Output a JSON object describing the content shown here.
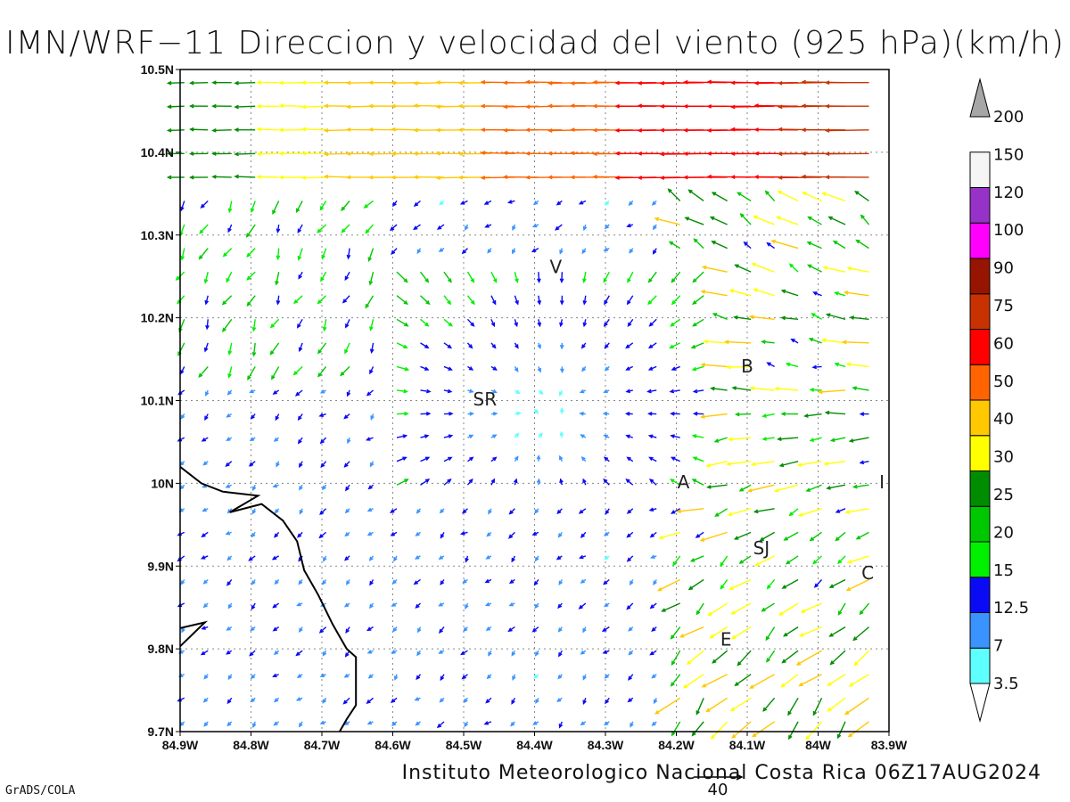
{
  "title": "IMN/WRF−11 Direccion y velocidad del viento (925 hPa)(km/h)",
  "footer": "Instituto Meteorologico Nacional Costa Rica 06Z17AUG2024",
  "software_credit": "GrADS/COLA",
  "map": {
    "lon_range": [
      -84.9,
      -83.9
    ],
    "lat_range": [
      9.7,
      10.5
    ],
    "grid": "dotted",
    "lon_ticks": [
      {
        "value": -84.9,
        "label": "84.9W"
      },
      {
        "value": -84.8,
        "label": "84.8W"
      },
      {
        "value": -84.7,
        "label": "84.7W"
      },
      {
        "value": -84.6,
        "label": "84.6W"
      },
      {
        "value": -84.5,
        "label": "84.5W"
      },
      {
        "value": -84.4,
        "label": "84.4W"
      },
      {
        "value": -84.3,
        "label": "84.3W"
      },
      {
        "value": -84.2,
        "label": "84.2W"
      },
      {
        "value": -84.1,
        "label": "84.1W"
      },
      {
        "value": -84.0,
        "label": "84W"
      },
      {
        "value": -83.9,
        "label": "83.9W"
      }
    ],
    "lat_ticks": [
      {
        "value": 9.7,
        "label": "9.7N"
      },
      {
        "value": 9.8,
        "label": "9.8N"
      },
      {
        "value": 9.9,
        "label": "9.9N"
      },
      {
        "value": 10.0,
        "label": "10N"
      },
      {
        "value": 10.1,
        "label": "10.1N"
      },
      {
        "value": 10.2,
        "label": "10.2N"
      },
      {
        "value": 10.3,
        "label": "10.3N"
      },
      {
        "value": 10.4,
        "label": "10.4N"
      },
      {
        "value": 10.5,
        "label": "10.5N"
      }
    ],
    "cities": [
      {
        "label": "V",
        "lon": -84.37,
        "lat": 10.26
      },
      {
        "label": "SR",
        "lon": -84.47,
        "lat": 10.1
      },
      {
        "label": "B",
        "lon": -84.1,
        "lat": 10.14
      },
      {
        "label": "A",
        "lon": -84.19,
        "lat": 10.0
      },
      {
        "label": "I",
        "lon": -83.91,
        "lat": 10.0
      },
      {
        "label": "SJ",
        "lon": -84.08,
        "lat": 9.92
      },
      {
        "label": "C",
        "lon": -83.93,
        "lat": 9.89
      },
      {
        "label": "E",
        "lon": -84.13,
        "lat": 9.81
      }
    ],
    "coastline": [
      [
        -84.9,
        10.02
      ],
      [
        -84.87,
        10.0
      ],
      [
        -84.84,
        9.99
      ],
      [
        -84.79,
        9.985
      ],
      [
        -84.83,
        9.965
      ],
      [
        -84.785,
        9.975
      ],
      [
        -84.755,
        9.955
      ],
      [
        -84.735,
        9.93
      ],
      [
        -84.725,
        9.895
      ],
      [
        -84.705,
        9.865
      ],
      [
        -84.685,
        9.83
      ],
      [
        -84.665,
        9.8
      ],
      [
        -84.652,
        9.79
      ],
      [
        -84.652,
        9.732
      ],
      [
        -84.665,
        9.715
      ],
      [
        -84.675,
        9.7
      ]
    ],
    "coastline2": [
      [
        -84.9,
        9.825
      ],
      [
        -84.865,
        9.832
      ],
      [
        -84.9,
        9.803
      ]
    ]
  },
  "wind_field": {
    "lon_step": 0.0333,
    "lat_step": 0.0286,
    "reference_vector": {
      "value": 40,
      "label": "40"
    }
  },
  "colorbar": {
    "labels": [
      "3.5",
      "7",
      "12.5",
      "15",
      "20",
      "25",
      "30",
      "40",
      "50",
      "60",
      "75",
      "90",
      "100",
      "120",
      "150",
      "200"
    ],
    "colors": [
      "#5effff",
      "#3a93ff",
      "#0a0af5",
      "#00f000",
      "#00c800",
      "#008c00",
      "#ffff00",
      "#ffc800",
      "#ff6400",
      "#ff0000",
      "#c83200",
      "#961400",
      "#ff00ff",
      "#9632c8",
      "#f5f5f5",
      "#a6a6a6"
    ]
  }
}
